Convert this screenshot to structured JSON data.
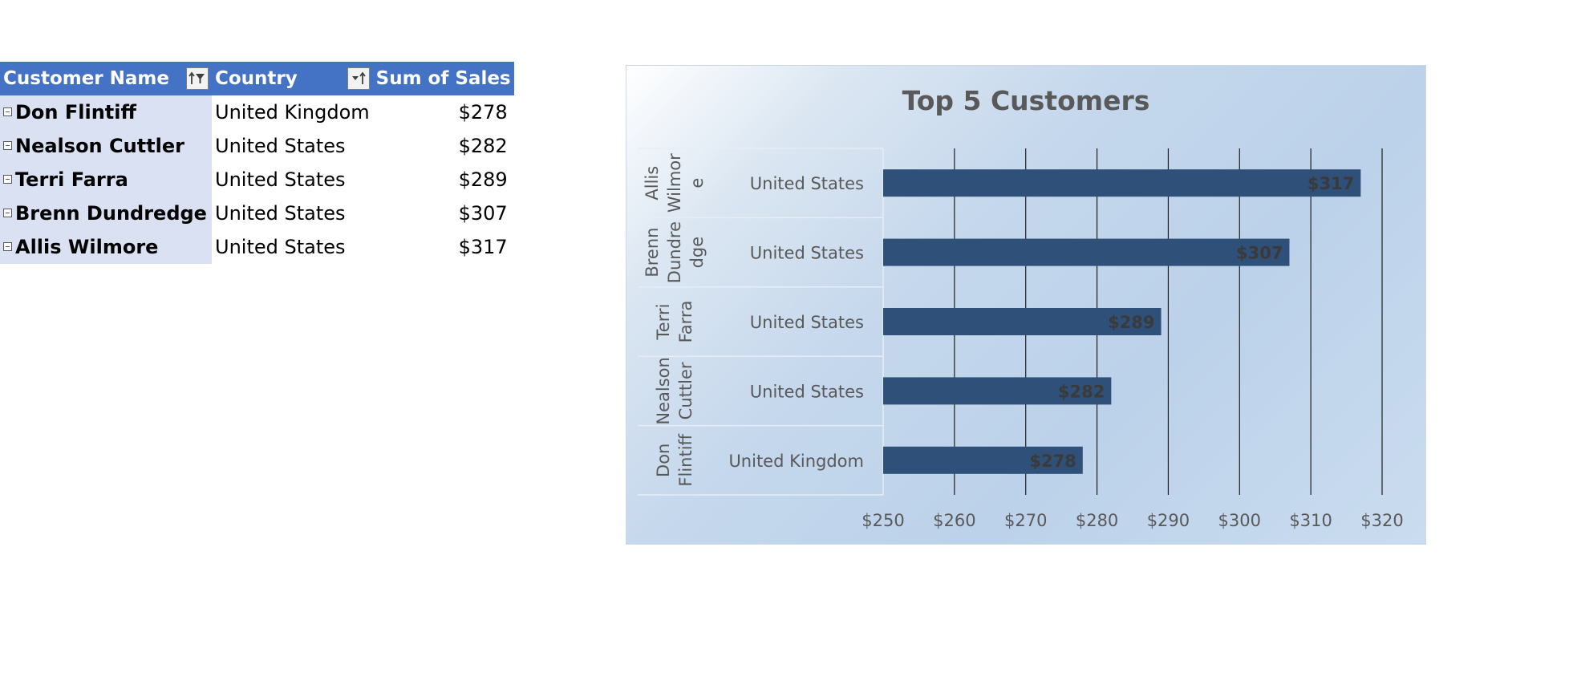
{
  "pivot": {
    "headers": {
      "customer": "Customer Name",
      "country": "Country",
      "sales": "Sum of Sales"
    },
    "rows": [
      {
        "customer": "Don Flintiff",
        "country": "United Kingdom",
        "sales": "$278"
      },
      {
        "customer": "Nealson Cuttler",
        "country": "United States",
        "sales": "$282"
      },
      {
        "customer": "Terri Farra",
        "country": "United States",
        "sales": "$289"
      },
      {
        "customer": "Brenn Dundredge",
        "country": "United States",
        "sales": "$307"
      },
      {
        "customer": "Allis Wilmore",
        "country": "United States",
        "sales": "$317"
      }
    ],
    "icons": {
      "filter": "filter-sort-icon",
      "sort": "sort-ascending-icon",
      "collapse": "collapse-minus-icon"
    }
  },
  "chart_data": {
    "type": "bar",
    "orientation": "horizontal",
    "title": "Top 5 Customers",
    "categories": [
      {
        "customer": "Allis Wilmore",
        "customer_lines": [
          "Allis",
          "Wilmor",
          "e"
        ],
        "country": "United States"
      },
      {
        "customer": "Brenn Dundredge",
        "customer_lines": [
          "Brenn",
          "Dundre",
          "dge"
        ],
        "country": "United States"
      },
      {
        "customer": "Terri Farra",
        "customer_lines": [
          "Terri",
          "Farra"
        ],
        "country": "United States"
      },
      {
        "customer": "Nealson Cuttler",
        "customer_lines": [
          "Nealson",
          "Cuttler"
        ],
        "country": "United States"
      },
      {
        "customer": "Don Flintiff",
        "customer_lines": [
          "Don",
          "Flintiff"
        ],
        "country": "United Kingdom"
      }
    ],
    "values": [
      317,
      307,
      289,
      282,
      278
    ],
    "data_labels": [
      "$317",
      "$307",
      "$289",
      "$282",
      "$278"
    ],
    "xlim": [
      250,
      320
    ],
    "x_ticks": [
      250,
      260,
      270,
      280,
      290,
      300,
      310,
      320
    ],
    "x_tick_labels": [
      "$250",
      "$260",
      "$270",
      "$280",
      "$290",
      "$300",
      "$310",
      "$320"
    ],
    "grid": true,
    "legend": "none",
    "bar_color": "#2e5079",
    "label_color": "#3a3a3a"
  }
}
